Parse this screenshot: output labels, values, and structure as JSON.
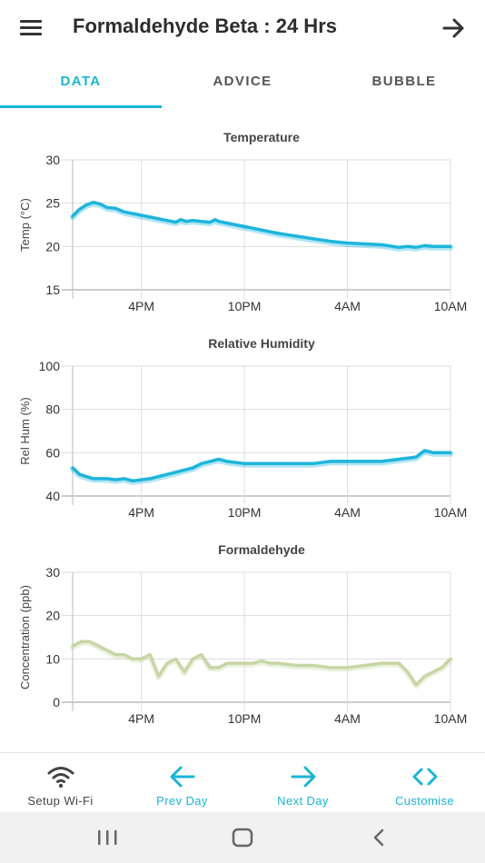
{
  "header": {
    "title": "Formaldehyde Beta : 24 Hrs",
    "menu_icon": "menu-icon",
    "forward_icon": "arrow-right-icon"
  },
  "tabs": [
    {
      "label": "DATA",
      "active": true
    },
    {
      "label": "ADVICE",
      "active": false
    },
    {
      "label": "BUBBLE",
      "active": false
    }
  ],
  "colors": {
    "accent": "#17b6d8",
    "temp_line": "#1cb5dc",
    "hum_line": "#1cb5dc",
    "form_line": "#c7d6a4",
    "grid": "#dddddd",
    "text_dark": "#2d2d2d"
  },
  "chart_data": [
    {
      "type": "line",
      "title": "Temperature",
      "ylabel": "Temp (°C)",
      "xlabel": "",
      "ylim": [
        15,
        30
      ],
      "yticks": [
        "30",
        "25",
        "20",
        "15"
      ],
      "xlim": [
        12,
        34
      ],
      "xticks": [
        "4PM",
        "10PM",
        "4AM",
        "10AM"
      ],
      "xtick_hours": [
        16,
        22,
        28,
        34
      ],
      "grid": true,
      "series": [
        {
          "x": [
            12.0,
            12.4,
            12.8,
            13.2,
            13.6,
            14.0,
            14.5,
            15.0,
            15.5,
            16.0,
            16.5,
            17.0,
            17.5,
            18.0,
            18.3,
            18.6,
            19.0,
            19.5,
            20.0,
            20.3,
            20.5,
            21.0,
            21.5,
            22.0,
            23.0,
            24.0,
            25.0,
            26.0,
            27.0,
            28.0,
            29.0,
            30.0,
            31.0,
            31.5,
            32.0,
            32.5,
            33.0,
            33.5,
            34.0
          ],
          "y": [
            23.5,
            24.3,
            24.8,
            25.1,
            24.9,
            24.5,
            24.4,
            24.0,
            23.8,
            23.6,
            23.4,
            23.2,
            23.0,
            22.8,
            23.1,
            22.9,
            23.0,
            22.9,
            22.8,
            23.1,
            22.9,
            22.7,
            22.5,
            22.3,
            21.9,
            21.5,
            21.2,
            20.9,
            20.6,
            20.4,
            20.3,
            20.2,
            19.9,
            20.0,
            19.9,
            20.1,
            20.0,
            20.0,
            20.0
          ]
        }
      ]
    },
    {
      "type": "line",
      "title": "Relative Humidity",
      "ylabel": "Rel Hum (%)",
      "xlabel": "",
      "ylim": [
        40,
        100
      ],
      "yticks": [
        "100",
        "80",
        "60",
        "40"
      ],
      "xlim": [
        12,
        34
      ],
      "xticks": [
        "4PM",
        "10PM",
        "4AM",
        "10AM"
      ],
      "xtick_hours": [
        16,
        22,
        28,
        34
      ],
      "grid": true,
      "series": [
        {
          "x": [
            12.0,
            12.4,
            12.8,
            13.2,
            13.6,
            14.0,
            14.5,
            15.0,
            15.5,
            16.0,
            16.5,
            17.0,
            17.5,
            18.0,
            18.5,
            19.0,
            19.5,
            20.0,
            20.5,
            21.0,
            22.0,
            23.0,
            24.0,
            25.0,
            26.0,
            27.0,
            28.0,
            29.0,
            30.0,
            31.0,
            32.0,
            32.5,
            33.0,
            33.5,
            34.0
          ],
          "y": [
            53,
            50,
            49,
            48,
            48,
            48,
            47.5,
            48,
            47,
            47.5,
            48,
            49,
            50,
            51,
            52,
            53,
            55,
            56,
            57,
            56,
            55,
            55,
            55,
            55,
            55,
            56,
            56,
            56,
            56,
            57,
            58,
            61,
            60,
            60,
            60
          ]
        }
      ]
    },
    {
      "type": "line",
      "title": "Formaldehyde",
      "ylabel": "Concentration (ppb)",
      "xlabel": "",
      "ylim": [
        0,
        30
      ],
      "yticks": [
        "30",
        "20",
        "10",
        "0"
      ],
      "xlim": [
        12,
        34
      ],
      "xticks": [
        "4PM",
        "10PM",
        "4AM",
        "10AM"
      ],
      "xtick_hours": [
        16,
        22,
        28,
        34
      ],
      "grid": true,
      "series": [
        {
          "x": [
            12.0,
            12.5,
            13.0,
            13.5,
            14.0,
            14.5,
            15.0,
            15.5,
            16.0,
            16.5,
            17.0,
            17.5,
            18.0,
            18.5,
            19.0,
            19.5,
            20.0,
            20.5,
            21.0,
            21.5,
            22.0,
            22.5,
            23.0,
            23.5,
            24.0,
            25.0,
            26.0,
            27.0,
            28.0,
            29.0,
            30.0,
            31.0,
            31.5,
            32.0,
            32.5,
            33.0,
            33.5,
            34.0
          ],
          "y": [
            13,
            14,
            14,
            13,
            12,
            11,
            11,
            10,
            10,
            11,
            6,
            9,
            10,
            7,
            10,
            11,
            8,
            8,
            9,
            9,
            9,
            9,
            9.5,
            9,
            9,
            8.5,
            8.5,
            8,
            8,
            8.5,
            9,
            9,
            7,
            4,
            6,
            7,
            8,
            10
          ]
        }
      ]
    }
  ],
  "bottom_nav": [
    {
      "label": "Setup Wi-Fi",
      "icon": "wifi-icon",
      "color": "#444444"
    },
    {
      "label": "Prev Day",
      "icon": "arrow-left-icon",
      "color": "#17b6d8"
    },
    {
      "label": "Next Day",
      "icon": "arrow-right-icon",
      "color": "#17b6d8"
    },
    {
      "label": "Customise",
      "icon": "code-brackets-icon",
      "color": "#17b6d8"
    }
  ],
  "system_nav": {
    "recents_icon": "recents-icon",
    "home_icon": "home-icon",
    "back_icon": "back-icon"
  }
}
